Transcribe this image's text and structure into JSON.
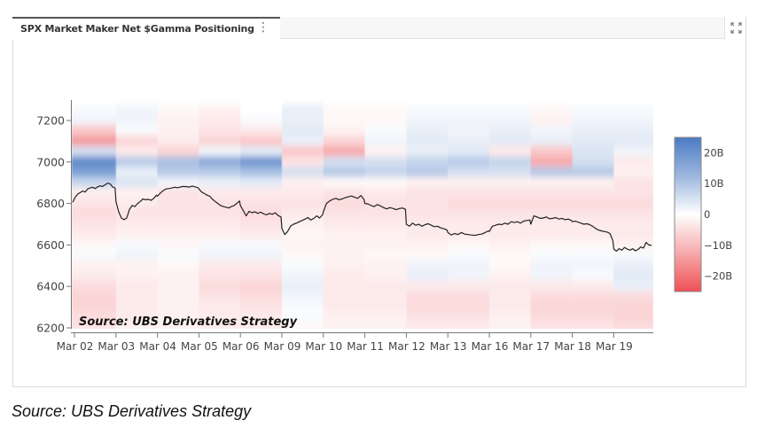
{
  "panel": {
    "tab_title": "SPX Market Maker Net $Gamma Positioning",
    "menu_icon": "kebab-menu-icon",
    "expand_icon": "expand-icon"
  },
  "footer": {
    "source": "Source: UBS Derivatives Strategy"
  },
  "colors": {
    "positive": "#4a7bc4",
    "negative": "#ee5055",
    "neutral": "#ffffff",
    "line": "#222222"
  },
  "chart_data": {
    "type": "heatmap",
    "title": "SPX Market Maker Net $Gamma Positioning",
    "annotation": "Source: UBS Derivatives Strategy",
    "xlabel": "",
    "ylabel": "",
    "x_tick_labels": [
      "Mar 02",
      "Mar 03",
      "Mar 04",
      "Mar 05",
      "Mar 06",
      "Mar 09",
      "Mar 10",
      "Mar 11",
      "Mar 12",
      "Mar 13",
      "Mar 16",
      "Mar 17",
      "Mar 18",
      "Mar 19"
    ],
    "y_ticks": [
      6200,
      6400,
      6600,
      6800,
      7000,
      7200
    ],
    "ylim": [
      6180,
      7300
    ],
    "grid": false,
    "colorbar": {
      "ticks": [
        20,
        10,
        0,
        -10,
        -20
      ],
      "tick_labels": [
        "20B",
        "10B",
        "0",
        "−10B",
        "−20B"
      ],
      "range": [
        -25,
        25
      ],
      "units": "B"
    },
    "strikes": [
      7250,
      7200,
      7150,
      7100,
      7050,
      7000,
      6950,
      6900,
      6850,
      6800,
      6750,
      6700,
      6650,
      6600,
      6550,
      6500,
      6450,
      6400,
      6350,
      6300,
      6250,
      6200
    ],
    "gamma_by_day": [
      {
        "day": "Mar 02",
        "values": [
          1,
          2,
          -8,
          -14,
          6,
          22,
          18,
          8,
          -2,
          -4,
          -5,
          -4,
          -3,
          -1,
          1,
          -2,
          -3,
          -5,
          -6,
          -6,
          -5,
          -4
        ]
      },
      {
        "day": "Mar 03",
        "values": [
          2,
          2,
          1,
          -6,
          -3,
          10,
          3,
          5,
          -2,
          -3,
          -4,
          -3,
          -2,
          1,
          2,
          -2,
          -2,
          -3,
          -3,
          -3,
          -3,
          -2
        ]
      },
      {
        "day": "Mar 04",
        "values": [
          -1,
          -2,
          -2,
          -3,
          -6,
          12,
          10,
          2,
          -4,
          -4,
          -4,
          -3,
          -2,
          -1,
          1,
          -1,
          -2,
          -2,
          -2,
          -2,
          -2,
          -2
        ]
      },
      {
        "day": "Mar 05",
        "values": [
          -2,
          -3,
          -4,
          -6,
          2,
          16,
          10,
          3,
          -3,
          -4,
          -4,
          -3,
          -2,
          1,
          2,
          -3,
          -4,
          -5,
          -4,
          -3,
          -3,
          -3
        ]
      },
      {
        "day": "Mar 06",
        "values": [
          0,
          1,
          -3,
          -8,
          4,
          20,
          12,
          4,
          -3,
          -4,
          -5,
          -4,
          -3,
          1,
          2,
          -3,
          -4,
          -6,
          -5,
          -4,
          -3,
          -3
        ]
      },
      {
        "day": "Mar 09",
        "values": [
          3,
          3,
          4,
          3,
          -8,
          -4,
          6,
          -2,
          -3,
          -4,
          -3,
          -2,
          -1,
          -2,
          -1,
          1,
          2,
          3,
          2,
          1,
          1,
          -1
        ]
      },
      {
        "day": "Mar 10",
        "values": [
          -1,
          -1,
          -2,
          -6,
          -12,
          6,
          10,
          -1,
          -4,
          -5,
          -4,
          -3,
          -2,
          -2,
          -2,
          -2,
          -3,
          -3,
          -3,
          -3,
          -2,
          -2
        ]
      },
      {
        "day": "Mar 11",
        "values": [
          -1,
          -1,
          1,
          2,
          -2,
          6,
          8,
          -1,
          -3,
          -4,
          -4,
          -3,
          -2,
          -2,
          -1,
          -2,
          -2,
          -3,
          -3,
          -3,
          -2,
          -2
        ]
      },
      {
        "day": "Mar 12",
        "values": [
          1,
          2,
          3,
          4,
          3,
          8,
          10,
          -2,
          -4,
          -4,
          -4,
          -3,
          -3,
          -2,
          -1,
          2,
          3,
          -3,
          -5,
          -5,
          -4,
          -3
        ]
      },
      {
        "day": "Mar 13",
        "values": [
          1,
          2,
          2,
          3,
          4,
          10,
          6,
          -2,
          -4,
          -5,
          -4,
          -3,
          -3,
          -1,
          1,
          2,
          2,
          -3,
          -5,
          -5,
          -4,
          -3
        ]
      },
      {
        "day": "Mar 16",
        "values": [
          1,
          2,
          3,
          4,
          -3,
          8,
          6,
          -2,
          -4,
          -5,
          -4,
          -3,
          -3,
          -2,
          -1,
          -1,
          -2,
          -3,
          -3,
          -3,
          -2,
          -2
        ]
      },
      {
        "day": "Mar 17",
        "values": [
          -1,
          -2,
          2,
          3,
          -8,
          -12,
          10,
          -2,
          -4,
          -5,
          -4,
          -3,
          -3,
          -1,
          1,
          2,
          2,
          -3,
          -5,
          -6,
          -5,
          -4
        ]
      },
      {
        "day": "Mar 18",
        "values": [
          1,
          2,
          3,
          4,
          5,
          6,
          10,
          -2,
          -4,
          -5,
          -4,
          -3,
          -3,
          -1,
          1,
          2,
          1,
          -3,
          -5,
          -6,
          -5,
          -4
        ]
      },
      {
        "day": "Mar 19",
        "values": [
          1,
          2,
          3,
          4,
          2,
          -3,
          -2,
          -4,
          -4,
          -5,
          -4,
          -3,
          -3,
          -2,
          1,
          3,
          4,
          3,
          -5,
          -6,
          -6,
          -5
        ]
      }
    ],
    "series": [
      {
        "name": "SPX",
        "type": "line",
        "values_by_day": [
          [
            6805,
            6830,
            6845,
            6852,
            6860,
            6855,
            6870,
            6875,
            6878,
            6872,
            6880,
            6885,
            6882,
            6890,
            6898,
            6895,
            6880,
            6875
          ],
          [
            6810,
            6760,
            6730,
            6722,
            6730,
            6772,
            6790,
            6785,
            6800,
            6810,
            6822,
            6818,
            6820,
            6815,
            6825,
            6840
          ],
          [
            6835,
            6850,
            6862,
            6870,
            6872,
            6875,
            6878,
            6876,
            6880,
            6882,
            6881,
            6879,
            6884,
            6880,
            6876
          ],
          [
            6870,
            6855,
            6848,
            6840,
            6835,
            6820,
            6810,
            6800,
            6790,
            6785,
            6782,
            6778,
            6785,
            6790,
            6800,
            6812
          ],
          [
            6790,
            6765,
            6740,
            6762,
            6755,
            6760,
            6752,
            6758,
            6750,
            6745,
            6752,
            6748,
            6755,
            6742,
            6735
          ],
          [
            6680,
            6650,
            6665,
            6690,
            6700,
            6705,
            6712,
            6718,
            6725,
            6732,
            6720,
            6728,
            6740,
            6730,
            6745
          ],
          [
            6760,
            6800,
            6812,
            6820,
            6825,
            6818,
            6822,
            6828,
            6832,
            6836,
            6830,
            6825,
            6838,
            6820
          ],
          [
            6800,
            6798,
            6790,
            6785,
            6795,
            6788,
            6780,
            6774,
            6780,
            6776,
            6770,
            6775,
            6778,
            6772
          ],
          [
            6700,
            6690,
            6705,
            6695,
            6700,
            6690,
            6698,
            6702,
            6695,
            6688,
            6690,
            6682,
            6678,
            6672
          ],
          [
            6660,
            6648,
            6655,
            6650,
            6660,
            6652,
            6650,
            6648,
            6646,
            6650,
            6652,
            6660,
            6668
          ],
          [
            6665,
            6690,
            6695,
            6700,
            6698,
            6705,
            6700,
            6712,
            6708,
            6712,
            6705,
            6715,
            6718,
            6720
          ],
          [
            6700,
            6740,
            6735,
            6728,
            6730,
            6735,
            6726,
            6728,
            6732,
            6725,
            6728,
            6722,
            6725,
            6718
          ],
          [
            6712,
            6715,
            6710,
            6705,
            6700,
            6702,
            6698,
            6690,
            6680,
            6672,
            6668,
            6665,
            6662,
            6655,
            6620
          ],
          [
            6580,
            6570,
            6582,
            6575,
            6588,
            6580,
            6575,
            6582,
            6572,
            6578,
            6590,
            6585,
            6612,
            6600,
            6598
          ]
        ]
      }
    ]
  }
}
